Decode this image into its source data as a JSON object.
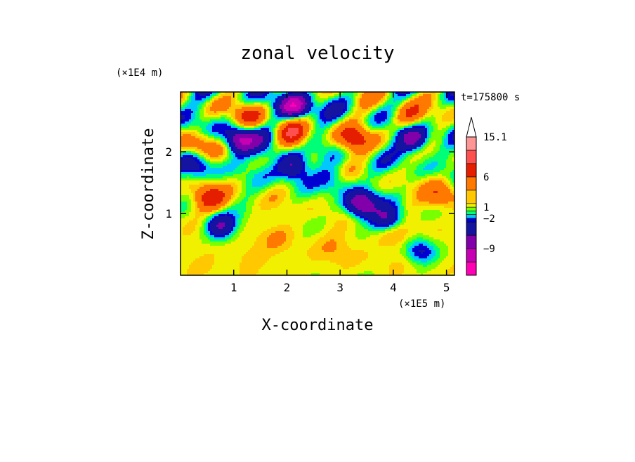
{
  "chart_data": {
    "type": "heatmap",
    "title": "zonal velocity",
    "xlabel": "X-coordinate",
    "ylabel": "Z-coordinate",
    "x_multiplier": "(×1E5 m)",
    "y_multiplier": "(×1E4 m)",
    "time_label": "t=175800 s",
    "xlim": [
      0,
      5.15
    ],
    "ylim": [
      0,
      2.97
    ],
    "xticks": [
      1,
      2,
      3,
      4,
      5
    ],
    "yticks": [
      1,
      2
    ],
    "xtick_labels": [
      "1",
      "2",
      "3",
      "4",
      "5"
    ],
    "ytick_labels": [
      "1",
      "2"
    ],
    "colorbar": {
      "labels": [
        "15.1",
        "6",
        "1",
        "−2",
        "−9"
      ],
      "label_levels": [
        15.1,
        6,
        1,
        -2,
        -9
      ],
      "levels": [
        -15,
        -12,
        -9,
        -6,
        -3,
        -2,
        -1,
        0,
        1,
        2,
        3,
        6,
        9,
        12,
        15.1
      ],
      "colors": [
        "#ff00b4",
        "#c800b4",
        "#8200aa",
        "#1414a0",
        "#0000d2",
        "#00c8ff",
        "#00ff78",
        "#78ff00",
        "#f0f000",
        "#ffc800",
        "#ff7800",
        "#e61e00",
        "#ff5050",
        "#ff9696",
        "#ffc8c8"
      ],
      "extend": "max"
    },
    "features": [
      {
        "x": 2.12,
        "z": 2.27,
        "value": 8
      },
      {
        "x": 0.55,
        "z": 1.25,
        "value": 7
      },
      {
        "x": 3.25,
        "z": 2.2,
        "value": 7
      },
      {
        "x": 4.3,
        "z": 2.55,
        "value": 6
      },
      {
        "x": 1.3,
        "z": 2.55,
        "value": 6
      },
      {
        "x": 0.35,
        "z": 2.1,
        "value": 5
      },
      {
        "x": 1.8,
        "z": 0.65,
        "value": 1
      },
      {
        "x": 2.9,
        "z": 0.45,
        "value": 1
      },
      {
        "x": 1.2,
        "z": 0.3,
        "value": 1
      },
      {
        "x": 4.0,
        "z": 0.7,
        "value": 3
      },
      {
        "x": 2.25,
        "z": 1.7,
        "value": 3
      },
      {
        "x": 4.9,
        "z": 1.3,
        "value": 5
      },
      {
        "x": 2.15,
        "z": 1.75,
        "value": -11
      },
      {
        "x": 2.15,
        "z": 2.72,
        "value": -11
      },
      {
        "x": 3.4,
        "z": 1.15,
        "value": -10
      },
      {
        "x": 1.1,
        "z": 2.2,
        "value": -10
      },
      {
        "x": 4.4,
        "z": 2.2,
        "value": -9
      },
      {
        "x": 3.9,
        "z": 0.9,
        "value": -8
      },
      {
        "x": 0.75,
        "z": 0.8,
        "value": -8
      },
      {
        "x": 1.6,
        "z": 2.05,
        "value": -3
      },
      {
        "x": 0.35,
        "z": 1.75,
        "value": -4
      },
      {
        "x": 2.9,
        "z": 1.55,
        "value": -3
      },
      {
        "x": 4.5,
        "z": 0.4,
        "value": -5
      }
    ]
  }
}
